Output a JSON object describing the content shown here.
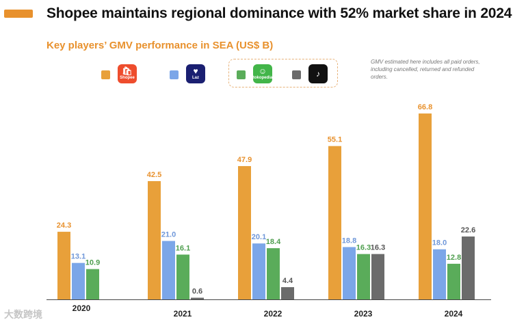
{
  "header": {
    "title": "Shopee maintains regional dominance with 52% market share in 2024",
    "subtitle": "Key players’ GMV performance in SEA (US$ B)",
    "note": "GMV estimated here includes all paid orders, including cancelled, returned and refunded orders."
  },
  "legend": [
    {
      "name": "Shopee",
      "logo_text": "Shopee",
      "logo_glyph": "🛍",
      "color": "#e8a03a",
      "logo_bg": "#ee4d2d"
    },
    {
      "name": "Lazada",
      "logo_text": "Laz",
      "logo_glyph": "♥",
      "color": "#7ba6e8",
      "logo_bg": "#1a1f71"
    },
    {
      "name": "Tokopedia",
      "logo_text": "tokopedia",
      "logo_glyph": "☺",
      "color": "#5aac5a",
      "logo_bg": "#42b549"
    },
    {
      "name": "TikTok",
      "logo_text": "",
      "logo_glyph": "♪",
      "color": "#6b6b6b",
      "logo_bg": "#111111"
    }
  ],
  "watermark": "大数跨境",
  "chart_data": {
    "type": "bar",
    "title": "Key players’ GMV performance in SEA (US$ B)",
    "categories": [
      "2020",
      "2021",
      "2022",
      "2023",
      "2024"
    ],
    "series": [
      {
        "name": "Shopee",
        "color": "#e8a03a",
        "label_color": "#e8912d",
        "values": [
          24.3,
          42.5,
          47.9,
          55.1,
          66.8
        ]
      },
      {
        "name": "Lazada",
        "color": "#7ba6e8",
        "label_color": "#6f97d9",
        "values": [
          13.1,
          21.0,
          20.1,
          18.8,
          18.0
        ]
      },
      {
        "name": "Tokopedia",
        "color": "#5aac5a",
        "label_color": "#4e9e4e",
        "values": [
          10.9,
          16.1,
          18.4,
          16.3,
          12.8
        ]
      },
      {
        "name": "TikTok",
        "color": "#6b6b6b",
        "label_color": "#555555",
        "values": [
          null,
          0.6,
          4.4,
          16.3,
          22.6
        ]
      }
    ],
    "value_labels": [
      [
        "24.3",
        "42.5",
        "47.9",
        "55.1",
        "66.8"
      ],
      [
        "13.1",
        "21.0",
        "20.1",
        "18.8",
        "18.0"
      ],
      [
        "10.9",
        "16.1",
        "18.4",
        "16.3",
        "12.8"
      ],
      [
        null,
        "0.6",
        "4.4",
        "16.3",
        "22.6"
      ]
    ],
    "xlabel": "",
    "ylabel": "",
    "ylim": [
      0,
      70
    ],
    "grid": false,
    "legend_position": "top-left"
  }
}
